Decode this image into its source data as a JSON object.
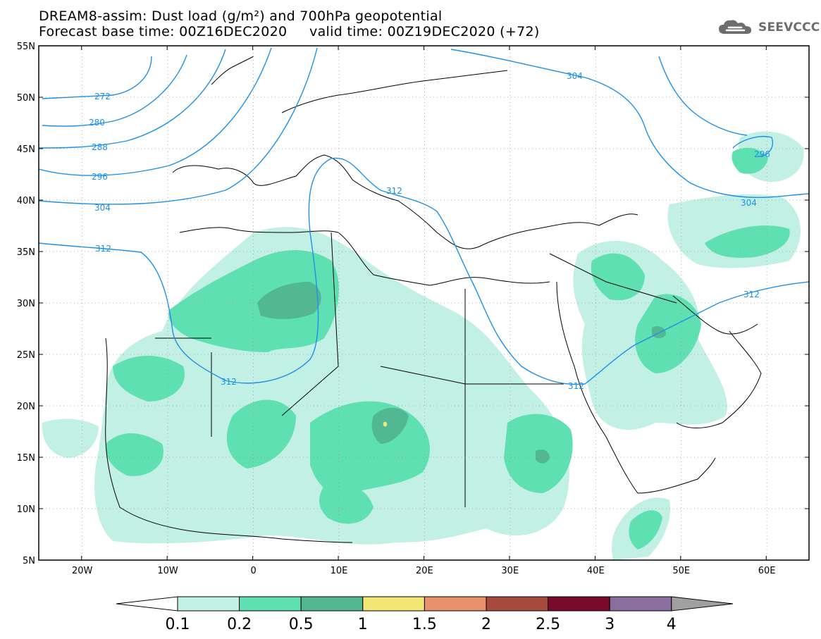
{
  "title": {
    "line1": "DREAM8-assim: Dust load (g/m²) and 700hPa geopotential",
    "line2": "Forecast base time: 00Z16DEC2020     valid time: 00Z19DEC2020 (+72)"
  },
  "logo": {
    "text": "SEEVCCC",
    "icon": "cloud-logo-icon"
  },
  "map": {
    "projection": "lat-lon",
    "lon_range": [
      -25,
      65
    ],
    "lat_range": [
      5,
      55
    ],
    "lat_ticks": [
      "55N",
      "50N",
      "45N",
      "40N",
      "35N",
      "30N",
      "25N",
      "20N",
      "15N",
      "10N",
      "5N"
    ],
    "lon_ticks": [
      "20W",
      "10W",
      "0",
      "10E",
      "20E",
      "30E",
      "40E",
      "50E",
      "60E"
    ],
    "grid": "dotted",
    "contour_color": "#1e90e8",
    "contour_labels": [
      {
        "text": "272"
      },
      {
        "text": "280"
      },
      {
        "text": "288"
      },
      {
        "text": "296"
      },
      {
        "text": "304"
      },
      {
        "text": "312"
      },
      {
        "text": "312"
      },
      {
        "text": "312"
      },
      {
        "text": "312"
      },
      {
        "text": "312"
      },
      {
        "text": "304"
      },
      {
        "text": "304"
      },
      {
        "text": "296"
      }
    ]
  },
  "colorbar": {
    "labels": [
      "0.1",
      "0.2",
      "0.5",
      "1",
      "1.5",
      "2",
      "2.5",
      "3",
      "4"
    ],
    "colors": [
      "#ffffff",
      "#c2f0e4",
      "#5fe0b2",
      "#52b893",
      "#f2e675",
      "#e8916c",
      "#a94a3f",
      "#7a0a2c",
      "#8a6f9e",
      "#a0a0a0"
    ]
  }
}
